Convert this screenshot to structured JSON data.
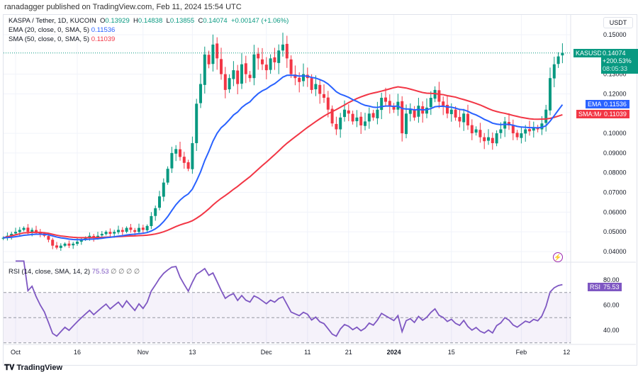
{
  "header": {
    "published": "ranadagger published on TradingView.com, Feb 11, 2024 15:54 UTC"
  },
  "legend": {
    "symbol": "KASPA / Tether, 1D, KUCOIN",
    "o_label": "O",
    "o": "0.13929",
    "h_label": "H",
    "h": "0.14838",
    "l_label": "L",
    "l": "0.13855",
    "c_label": "C",
    "c": "0.14074",
    "change": "+0.00147 (+1.06%)",
    "ema_label": "EMA (20, close, 0, SMA, 5)",
    "ema_value": "0.11536",
    "sma_label": "SMA (50, close, 0, SMA, 5)",
    "sma_value": "0.11039",
    "rsi_label": "RSI (14, close, SMA, 14, 2)",
    "rsi_value": "75.53",
    "rsi_extra": "∅ ∅ ∅ ∅"
  },
  "axis": {
    "currency": "USDT",
    "price_label": "KASUSDT",
    "price": "0.14074",
    "pct": "+200.53%",
    "countdown": "08:05:33",
    "ema_tag": "EMA",
    "ema_val": "0.11536",
    "sma_tag": "SMA:MA",
    "sma_val": "0.11039",
    "rsi_tag": "RSI",
    "rsi_val": "75.53"
  },
  "footer": {
    "brand": "TradingView"
  },
  "colors": {
    "up": "#089981",
    "down": "#f23645",
    "ema": "#2962ff",
    "sma": "#f23645",
    "rsi": "#7e57c2"
  },
  "chart_data": {
    "type": "candlestick",
    "start_date": "2023-09-28",
    "closes": [
      0.047,
      0.048,
      0.049,
      0.05,
      0.051,
      0.052,
      0.05,
      0.051,
      0.05,
      0.049,
      0.048,
      0.046,
      0.043,
      0.042,
      0.043,
      0.044,
      0.043,
      0.044,
      0.045,
      0.046,
      0.047,
      0.048,
      0.047,
      0.048,
      0.049,
      0.05,
      0.049,
      0.05,
      0.051,
      0.05,
      0.052,
      0.051,
      0.05,
      0.052,
      0.051,
      0.053,
      0.058,
      0.062,
      0.068,
      0.075,
      0.082,
      0.09,
      0.092,
      0.088,
      0.085,
      0.082,
      0.095,
      0.115,
      0.125,
      0.14,
      0.135,
      0.145,
      0.138,
      0.13,
      0.122,
      0.128,
      0.132,
      0.125,
      0.135,
      0.13,
      0.128,
      0.14,
      0.138,
      0.135,
      0.132,
      0.138,
      0.136,
      0.142,
      0.145,
      0.138,
      0.13,
      0.128,
      0.126,
      0.13,
      0.128,
      0.122,
      0.125,
      0.12,
      0.118,
      0.112,
      0.105,
      0.102,
      0.108,
      0.112,
      0.11,
      0.106,
      0.108,
      0.104,
      0.106,
      0.11,
      0.108,
      0.112,
      0.118,
      0.116,
      0.114,
      0.112,
      0.116,
      0.1,
      0.11,
      0.112,
      0.108,
      0.114,
      0.11,
      0.113,
      0.118,
      0.122,
      0.116,
      0.114,
      0.11,
      0.112,
      0.108,
      0.106,
      0.11,
      0.104,
      0.1,
      0.102,
      0.098,
      0.096,
      0.098,
      0.095,
      0.1,
      0.102,
      0.106,
      0.104,
      0.1,
      0.098,
      0.1,
      0.102,
      0.101,
      0.103,
      0.102,
      0.105,
      0.112,
      0.128,
      0.135,
      0.139,
      0.14074
    ],
    "price_ticks": [
      "0.15000",
      "0.13000",
      "0.12000",
      "0.10000",
      "0.09000",
      "0.08000",
      "0.07000",
      "0.06000",
      "0.05000",
      "0.04000"
    ],
    "price_range": [
      0.04,
      0.15
    ],
    "rsi_ticks": [
      "80.00",
      "60.00",
      "40.00"
    ],
    "rsi_bands": [
      70,
      50,
      30
    ],
    "x_ticks": [
      {
        "label": "Oct",
        "date": "2023-10-01"
      },
      {
        "label": "16",
        "date": "2023-10-16"
      },
      {
        "label": "Nov",
        "date": "2023-11-01"
      },
      {
        "label": "13",
        "date": "2023-11-13"
      },
      {
        "label": "Dec",
        "date": "2023-12-01"
      },
      {
        "label": "11",
        "date": "2023-12-11"
      },
      {
        "label": "21",
        "date": "2023-12-21"
      },
      {
        "label": "2024",
        "date": "2024-01-01"
      },
      {
        "label": "15",
        "date": "2024-01-15"
      },
      {
        "label": "Feb",
        "date": "2024-02-01"
      },
      {
        "label": "12",
        "date": "2024-02-12"
      }
    ],
    "ema_period": 20,
    "sma_period": 50,
    "rsi_period": 14,
    "grid": true
  }
}
